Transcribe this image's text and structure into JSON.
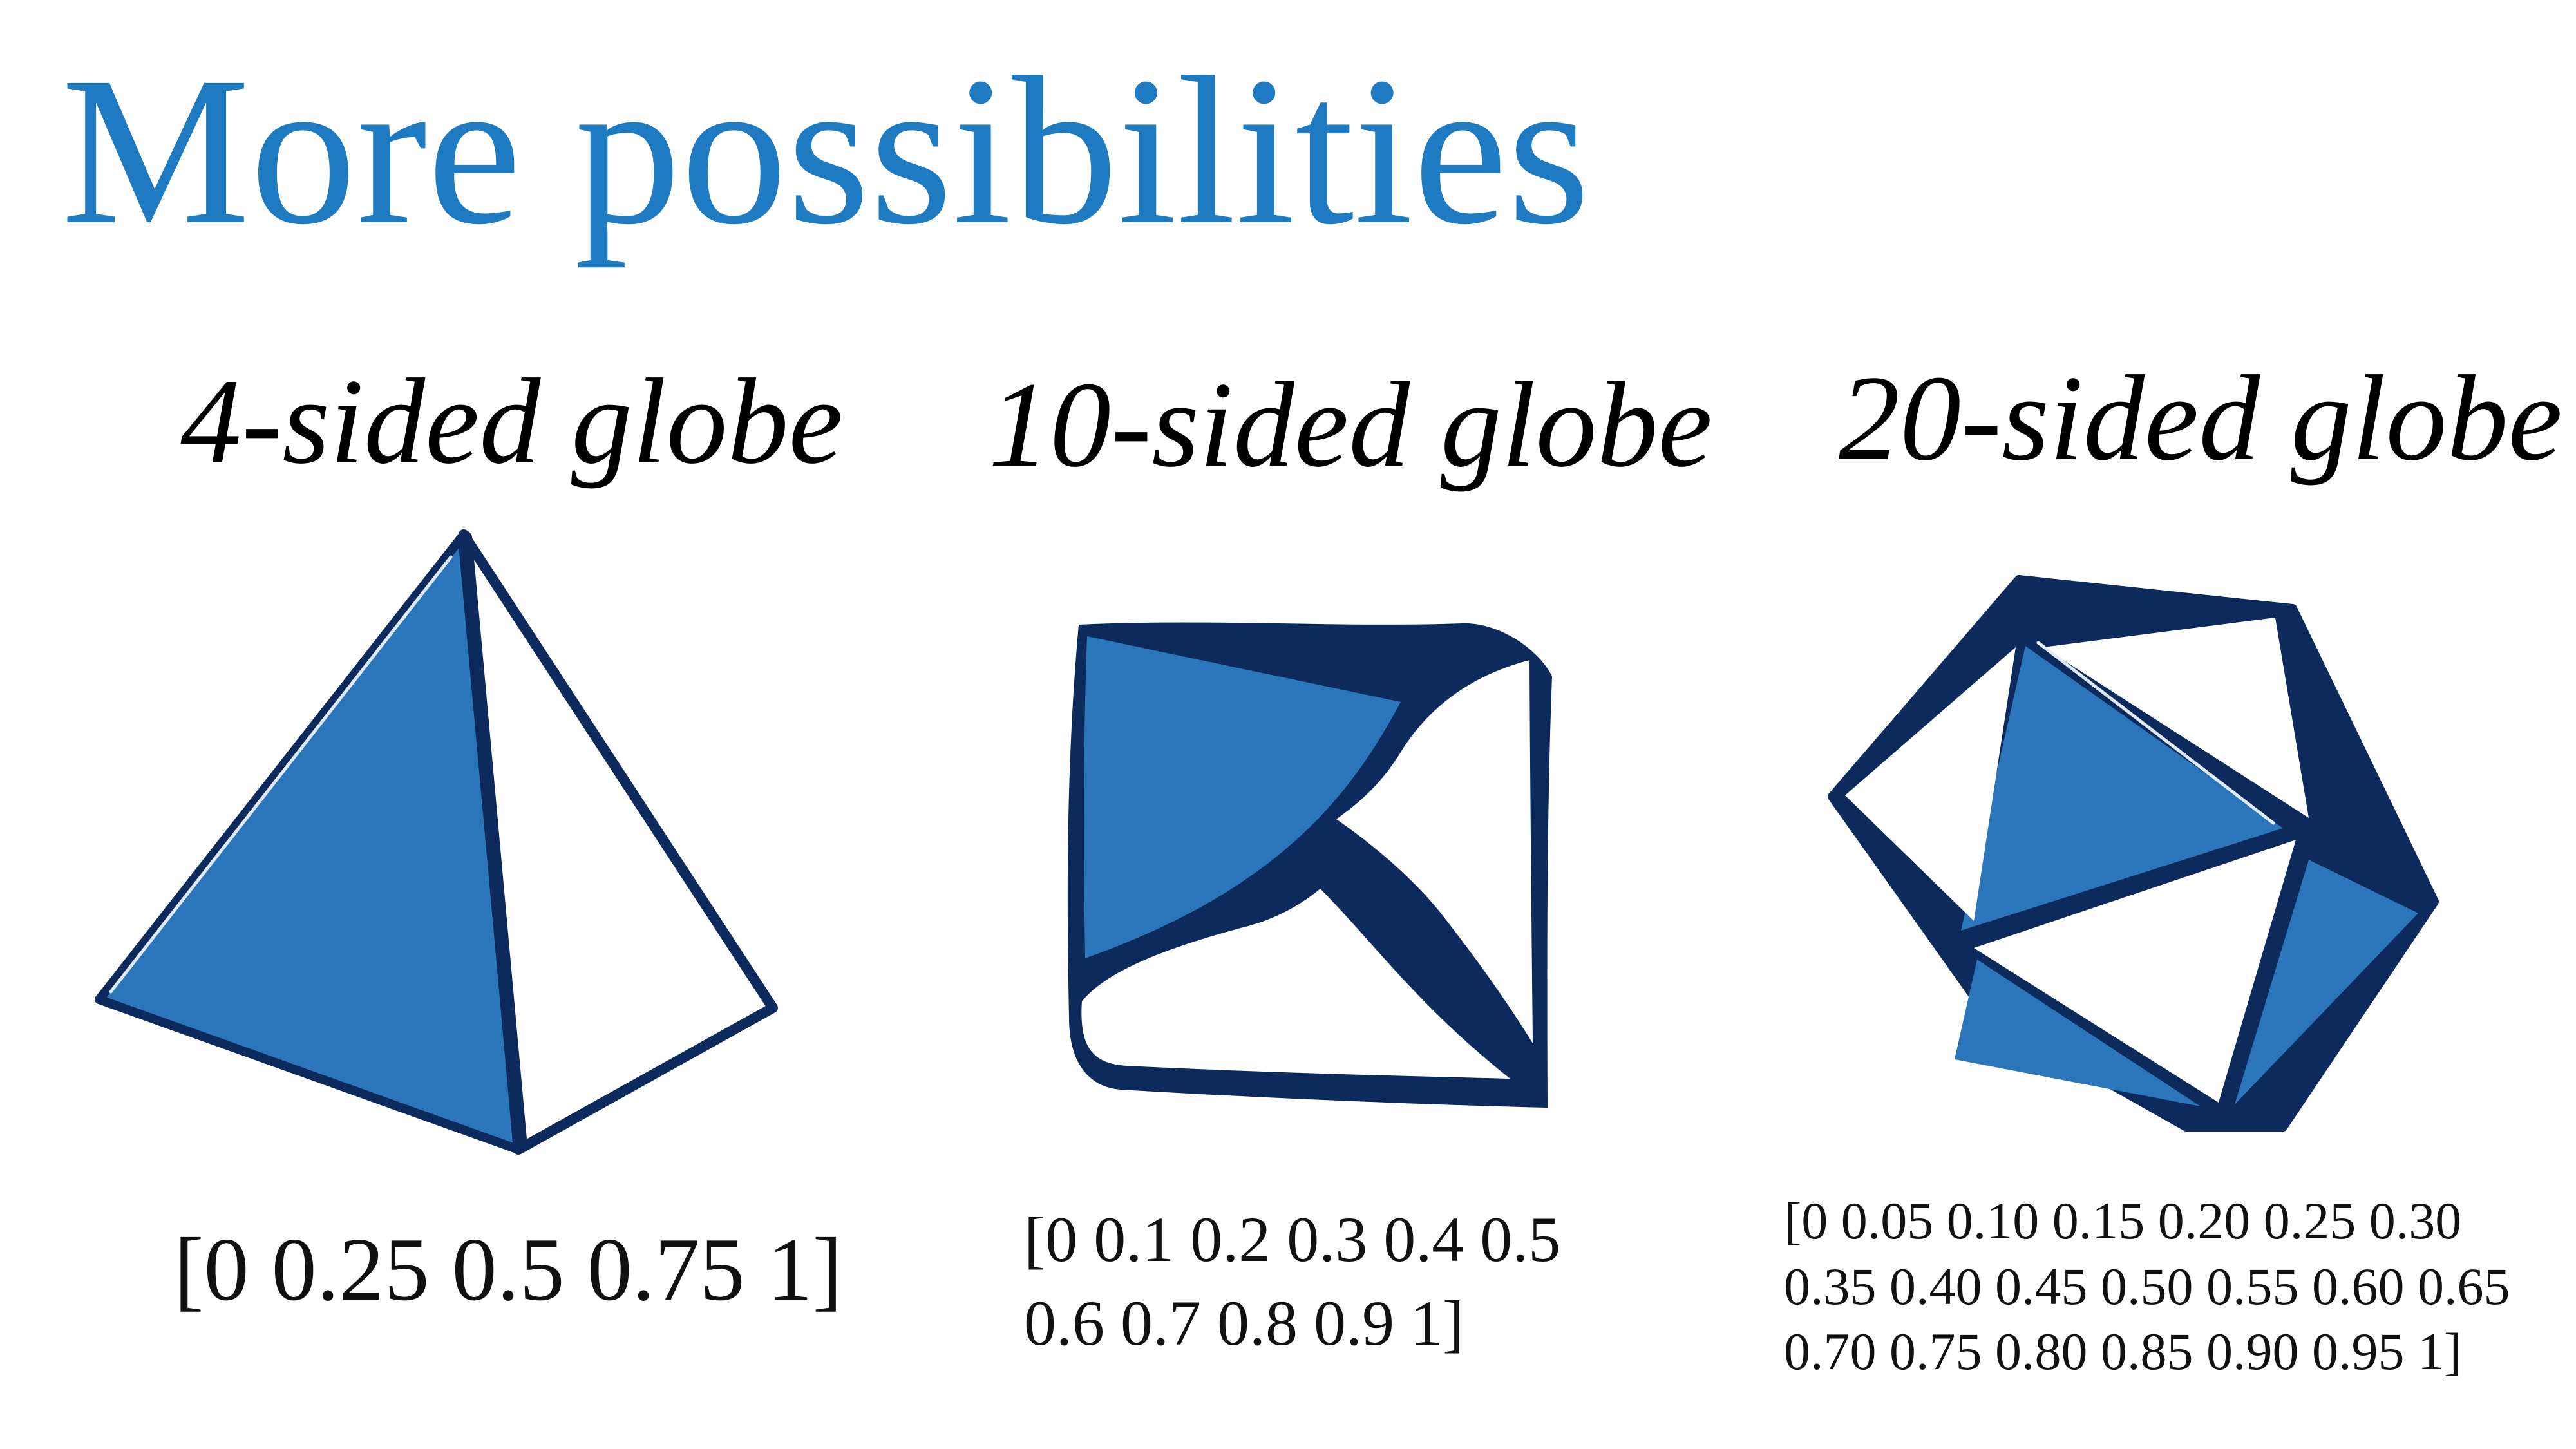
{
  "title": "More possibilities",
  "panels": [
    {
      "heading": "4-sided globe",
      "sequence_lines": [
        "[0 0.25 0.5 0.75 1]"
      ]
    },
    {
      "heading": "10-sided globe",
      "sequence_lines": [
        "[0 0.1 0.2 0.3 0.4 0.5",
        "0.6 0.7 0.8 0.9 1]"
      ]
    },
    {
      "heading": "20-sided globe",
      "sequence_lines": [
        "[0 0.05 0.10 0.15 0.20 0.25 0.30",
        "0.35 0.40 0.45 0.50 0.55 0.60 0.65",
        "0.70 0.75 0.80 0.85 0.90 0.95 1]"
      ]
    }
  ],
  "colors": {
    "title": "#1f7bc1",
    "face_blue": "#2b76ba",
    "edge_navy": "#0d2a5c",
    "face_white": "#ffffff"
  }
}
